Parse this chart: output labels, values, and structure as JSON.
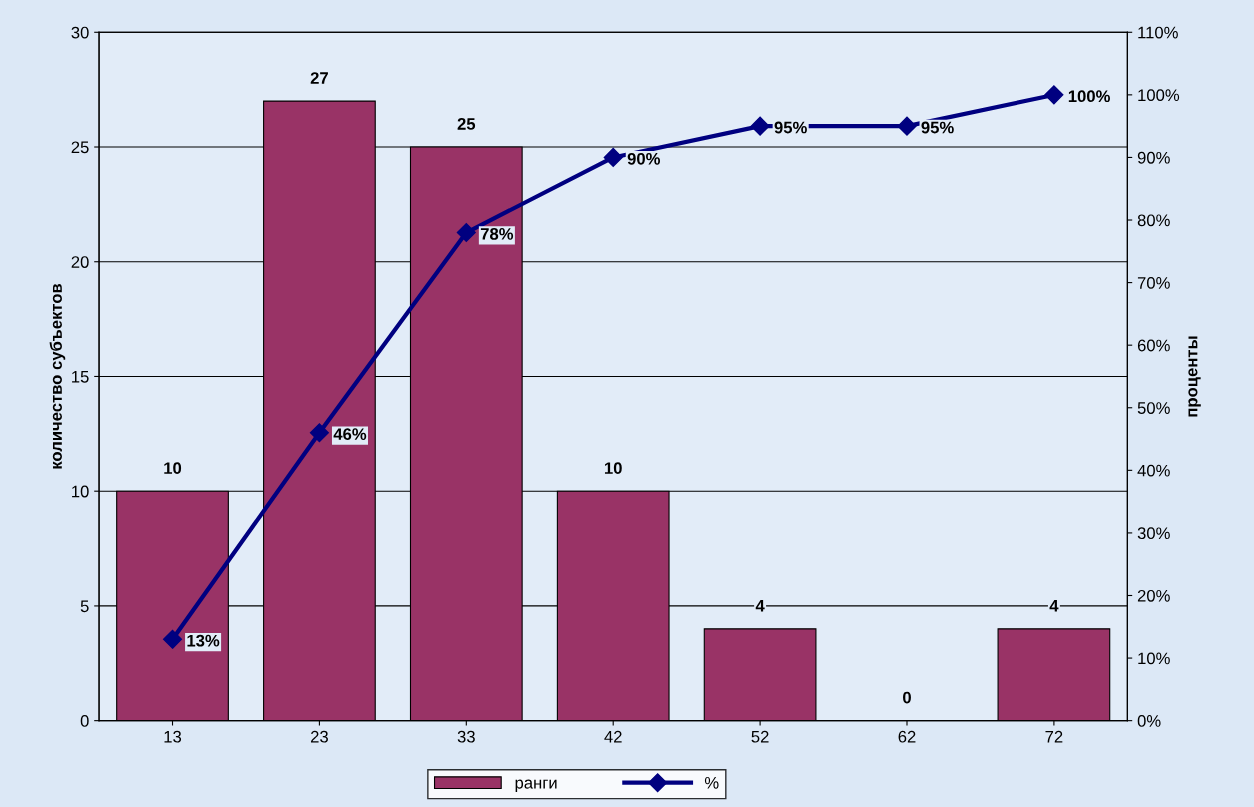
{
  "chart_data": {
    "type": "bar",
    "ylabel": "количество субъектов",
    "y2label": "проценты",
    "categories": [
      "13",
      "23",
      "33",
      "42",
      "52",
      "62",
      "72"
    ],
    "series": [
      {
        "name": "ранги",
        "color": "#993366",
        "values": [
          10,
          27,
          25,
          10,
          4,
          0,
          4
        ],
        "value_labels": [
          "10",
          "27",
          "25",
          "10",
          "4",
          "0",
          "4"
        ]
      },
      {
        "name": "%",
        "type": "line",
        "axis": "y2",
        "color": "#000080",
        "marker": "diamond",
        "line_style": "solid",
        "values": [
          13,
          46,
          78,
          90,
          95,
          95,
          100
        ],
        "value_labels": [
          "13%",
          "46%",
          "78%",
          "90%",
          "95%",
          "95%",
          "100%"
        ]
      }
    ],
    "ylim": [
      0,
      30
    ],
    "yticks": [
      0,
      5,
      10,
      15,
      20,
      25,
      30
    ],
    "y2lim": [
      0,
      110
    ],
    "y2ticks": [
      {
        "value": 0,
        "label": "0%"
      },
      {
        "value": 10,
        "label": "10%"
      },
      {
        "value": 20,
        "label": "20%"
      },
      {
        "value": 30,
        "label": "30%"
      },
      {
        "value": 40,
        "label": "40%"
      },
      {
        "value": 50,
        "label": "50%"
      },
      {
        "value": 60,
        "label": "60%"
      },
      {
        "value": 70,
        "label": "70%"
      },
      {
        "value": 80,
        "label": "80%"
      },
      {
        "value": 90,
        "label": "90%"
      },
      {
        "value": 100,
        "label": "100%"
      },
      {
        "value": 110,
        "label": "110%"
      }
    ],
    "grid": "y",
    "legend": "bottom"
  }
}
